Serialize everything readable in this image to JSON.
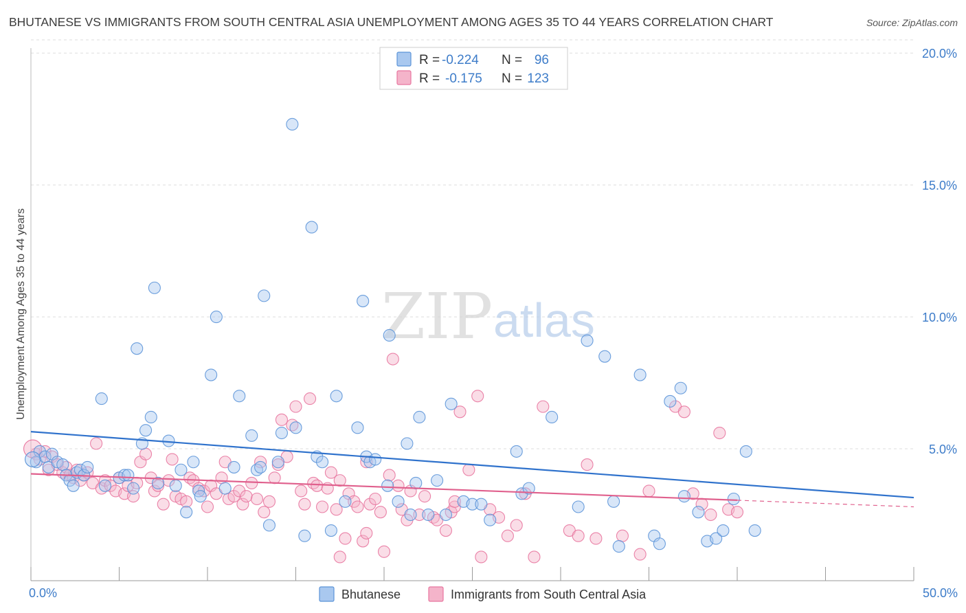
{
  "title": "BHUTANESE VS IMMIGRANTS FROM SOUTH CENTRAL ASIA UNEMPLOYMENT AMONG AGES 35 TO 44 YEARS CORRELATION CHART",
  "source": "Source: ZipAtlas.com",
  "watermark": {
    "zip": "ZIP",
    "atlas": "atlas"
  },
  "colors": {
    "blue": "#5b93d8",
    "blue_fill": "#a9c8ef",
    "blue_line": "#2f72cc",
    "pink": "#e8769f",
    "pink_fill": "#f4b4ca",
    "pink_line": "#e0608d",
    "axis_text": "#3d7cc9",
    "grid": "#dddddd"
  },
  "stats_legend": {
    "rows": [
      {
        "r_label": "R =",
        "r_value": "-0.224",
        "n_label": "N =",
        "n_value": "96",
        "series": "blue"
      },
      {
        "r_label": "R =",
        "r_value": "-0.175",
        "n_label": "N =",
        "n_value": "123",
        "series": "pink"
      }
    ]
  },
  "bottom_legend": [
    "Bhutanese",
    "Immigrants from South Central Asia"
  ],
  "chart_data": {
    "type": "scatter",
    "title": "BHUTANESE VS IMMIGRANTS FROM SOUTH CENTRAL ASIA UNEMPLOYMENT AMONG AGES 35 TO 44 YEARS CORRELATION CHART",
    "xlabel": "",
    "ylabel": "Unemployment Among Ages 35 to 44 years",
    "xlim": [
      0,
      50
    ],
    "ylim": [
      0,
      20.5
    ],
    "x_tick_labels": [
      "0.0%",
      "50.0%"
    ],
    "y_ticks": [
      5,
      10,
      15,
      20
    ],
    "y_tick_labels": [
      "5.0%",
      "10.0%",
      "15.0%",
      "20.0%"
    ],
    "grid": true,
    "legend_position": "top-center",
    "series": [
      {
        "name": "Bhutanese",
        "color": "blue",
        "trend": {
          "x": [
            0,
            50
          ],
          "y": [
            5.65,
            3.15
          ]
        },
        "points": [
          [
            0.3,
            4.5
          ],
          [
            0.5,
            4.9
          ],
          [
            0.8,
            4.7
          ],
          [
            1.0,
            4.3
          ],
          [
            1.2,
            4.8
          ],
          [
            1.5,
            4.5
          ],
          [
            1.8,
            4.4
          ],
          [
            2.0,
            4.0
          ],
          [
            2.2,
            3.8
          ],
          [
            2.4,
            3.6
          ],
          [
            2.6,
            4.1
          ],
          [
            2.8,
            4.2
          ],
          [
            3.0,
            4.0
          ],
          [
            3.2,
            4.3
          ],
          [
            4.0,
            6.9
          ],
          [
            4.2,
            3.6
          ],
          [
            5.0,
            3.9
          ],
          [
            5.3,
            4.0
          ],
          [
            5.5,
            4.0
          ],
          [
            5.8,
            3.5
          ],
          [
            6.0,
            8.8
          ],
          [
            6.3,
            5.2
          ],
          [
            6.5,
            5.7
          ],
          [
            6.8,
            6.2
          ],
          [
            7.0,
            11.1
          ],
          [
            7.2,
            3.7
          ],
          [
            7.8,
            5.3
          ],
          [
            8.2,
            3.6
          ],
          [
            8.5,
            4.2
          ],
          [
            8.8,
            2.6
          ],
          [
            9.2,
            4.5
          ],
          [
            9.5,
            3.4
          ],
          [
            9.6,
            3.2
          ],
          [
            10.2,
            7.8
          ],
          [
            10.5,
            10.0
          ],
          [
            11.0,
            3.5
          ],
          [
            11.5,
            4.3
          ],
          [
            11.8,
            7.0
          ],
          [
            12.5,
            5.5
          ],
          [
            12.8,
            4.2
          ],
          [
            13.0,
            4.3
          ],
          [
            13.2,
            10.8
          ],
          [
            13.5,
            2.1
          ],
          [
            14.0,
            4.5
          ],
          [
            14.2,
            5.6
          ],
          [
            14.8,
            17.3
          ],
          [
            15.0,
            5.8
          ],
          [
            15.5,
            1.7
          ],
          [
            15.9,
            13.4
          ],
          [
            16.2,
            4.7
          ],
          [
            16.5,
            4.5
          ],
          [
            17.0,
            1.9
          ],
          [
            17.3,
            7.0
          ],
          [
            17.8,
            3.0
          ],
          [
            18.5,
            5.8
          ],
          [
            18.8,
            10.6
          ],
          [
            19.0,
            4.7
          ],
          [
            19.2,
            4.5
          ],
          [
            19.5,
            4.6
          ],
          [
            20.2,
            3.6
          ],
          [
            20.3,
            9.3
          ],
          [
            20.8,
            3.0
          ],
          [
            21.3,
            5.2
          ],
          [
            21.5,
            2.5
          ],
          [
            21.8,
            3.7
          ],
          [
            22.0,
            6.2
          ],
          [
            22.5,
            2.5
          ],
          [
            23.0,
            3.8
          ],
          [
            23.5,
            2.5
          ],
          [
            23.8,
            6.7
          ],
          [
            24.5,
            3.0
          ],
          [
            25.0,
            2.9
          ],
          [
            25.5,
            2.9
          ],
          [
            26.0,
            2.3
          ],
          [
            27.5,
            4.9
          ],
          [
            27.8,
            3.3
          ],
          [
            28.2,
            3.5
          ],
          [
            29.5,
            6.2
          ],
          [
            31.0,
            2.8
          ],
          [
            31.5,
            9.1
          ],
          [
            32.5,
            8.5
          ],
          [
            33.0,
            3.0
          ],
          [
            33.3,
            1.3
          ],
          [
            34.5,
            7.8
          ],
          [
            35.3,
            1.7
          ],
          [
            35.6,
            1.4
          ],
          [
            36.2,
            6.8
          ],
          [
            36.8,
            7.3
          ],
          [
            37.0,
            3.2
          ],
          [
            37.8,
            2.6
          ],
          [
            38.3,
            1.5
          ],
          [
            38.8,
            1.6
          ],
          [
            39.2,
            1.9
          ],
          [
            39.8,
            3.1
          ],
          [
            40.5,
            4.9
          ],
          [
            41.0,
            1.9
          ]
        ]
      },
      {
        "name": "Immigrants from South Central Asia",
        "color": "pink",
        "trend": {
          "x": [
            0,
            40
          ],
          "y": [
            4.05,
            3.05
          ]
        },
        "trend_dashed": {
          "x": [
            40,
            50
          ],
          "y": [
            3.05,
            2.8
          ]
        },
        "points": [
          [
            0.3,
            4.8
          ],
          [
            0.5,
            4.6
          ],
          [
            0.8,
            4.9
          ],
          [
            1.0,
            4.2
          ],
          [
            1.2,
            4.7
          ],
          [
            1.5,
            4.4
          ],
          [
            1.8,
            4.1
          ],
          [
            2.0,
            4.3
          ],
          [
            2.2,
            4.0
          ],
          [
            2.4,
            3.9
          ],
          [
            2.6,
            4.2
          ],
          [
            2.8,
            3.8
          ],
          [
            3.0,
            4.0
          ],
          [
            3.2,
            4.1
          ],
          [
            3.5,
            3.7
          ],
          [
            3.7,
            5.2
          ],
          [
            4.0,
            3.5
          ],
          [
            4.2,
            3.8
          ],
          [
            4.5,
            3.6
          ],
          [
            4.8,
            3.4
          ],
          [
            5.0,
            3.9
          ],
          [
            5.3,
            3.3
          ],
          [
            5.5,
            3.6
          ],
          [
            5.8,
            3.2
          ],
          [
            6.0,
            3.7
          ],
          [
            6.2,
            4.5
          ],
          [
            6.5,
            4.8
          ],
          [
            6.8,
            3.9
          ],
          [
            7.0,
            3.4
          ],
          [
            7.2,
            3.6
          ],
          [
            7.5,
            2.9
          ],
          [
            7.8,
            3.8
          ],
          [
            8.0,
            4.6
          ],
          [
            8.2,
            3.2
          ],
          [
            8.5,
            3.1
          ],
          [
            8.8,
            3.0
          ],
          [
            9.0,
            3.9
          ],
          [
            9.2,
            3.8
          ],
          [
            9.5,
            3.5
          ],
          [
            9.8,
            3.4
          ],
          [
            10.0,
            2.8
          ],
          [
            10.2,
            3.6
          ],
          [
            10.5,
            3.3
          ],
          [
            10.8,
            3.9
          ],
          [
            11.0,
            4.5
          ],
          [
            11.2,
            3.1
          ],
          [
            11.5,
            3.2
          ],
          [
            11.8,
            3.4
          ],
          [
            12.0,
            2.9
          ],
          [
            12.2,
            3.2
          ],
          [
            12.5,
            3.7
          ],
          [
            12.8,
            3.1
          ],
          [
            13.0,
            4.5
          ],
          [
            13.2,
            2.6
          ],
          [
            13.5,
            3.0
          ],
          [
            13.8,
            3.9
          ],
          [
            14.0,
            4.4
          ],
          [
            14.2,
            6.1
          ],
          [
            14.5,
            4.7
          ],
          [
            14.8,
            5.9
          ],
          [
            15.0,
            6.6
          ],
          [
            15.3,
            3.4
          ],
          [
            15.5,
            2.9
          ],
          [
            15.8,
            6.9
          ],
          [
            16.0,
            3.7
          ],
          [
            16.2,
            3.6
          ],
          [
            16.5,
            2.8
          ],
          [
            16.8,
            3.5
          ],
          [
            17.0,
            4.1
          ],
          [
            17.3,
            2.7
          ],
          [
            17.5,
            3.8
          ],
          [
            17.8,
            1.6
          ],
          [
            18.0,
            3.3
          ],
          [
            18.3,
            3.0
          ],
          [
            18.5,
            2.8
          ],
          [
            18.8,
            1.5
          ],
          [
            19.0,
            4.5
          ],
          [
            19.2,
            2.9
          ],
          [
            19.5,
            3.1
          ],
          [
            19.8,
            2.6
          ],
          [
            20.0,
            1.1
          ],
          [
            20.3,
            4.0
          ],
          [
            20.5,
            8.4
          ],
          [
            20.8,
            3.6
          ],
          [
            21.0,
            2.7
          ],
          [
            21.3,
            2.3
          ],
          [
            21.5,
            3.4
          ],
          [
            22.0,
            2.5
          ],
          [
            22.3,
            3.2
          ],
          [
            22.8,
            2.4
          ],
          [
            23.0,
            2.3
          ],
          [
            23.5,
            1.9
          ],
          [
            23.8,
            2.6
          ],
          [
            24.0,
            2.8
          ],
          [
            24.3,
            6.4
          ],
          [
            24.8,
            4.2
          ],
          [
            25.3,
            7.0
          ],
          [
            25.5,
            0.9
          ],
          [
            26.0,
            2.7
          ],
          [
            26.5,
            2.4
          ],
          [
            27.0,
            1.7
          ],
          [
            27.5,
            2.1
          ],
          [
            28.0,
            3.3
          ],
          [
            28.5,
            0.9
          ],
          [
            29.0,
            6.6
          ],
          [
            30.5,
            1.9
          ],
          [
            31.0,
            1.7
          ],
          [
            31.5,
            4.4
          ],
          [
            32.0,
            1.6
          ],
          [
            33.5,
            1.7
          ],
          [
            34.5,
            1.0
          ],
          [
            35.0,
            3.4
          ],
          [
            36.5,
            6.6
          ],
          [
            37.0,
            6.4
          ],
          [
            37.5,
            3.3
          ],
          [
            38.0,
            2.9
          ],
          [
            38.5,
            2.5
          ],
          [
            39.0,
            5.6
          ],
          [
            39.5,
            2.7
          ],
          [
            40.0,
            2.6
          ],
          [
            17.5,
            0.9
          ],
          [
            19.0,
            1.8
          ],
          [
            24.0,
            3.0
          ]
        ]
      }
    ]
  }
}
